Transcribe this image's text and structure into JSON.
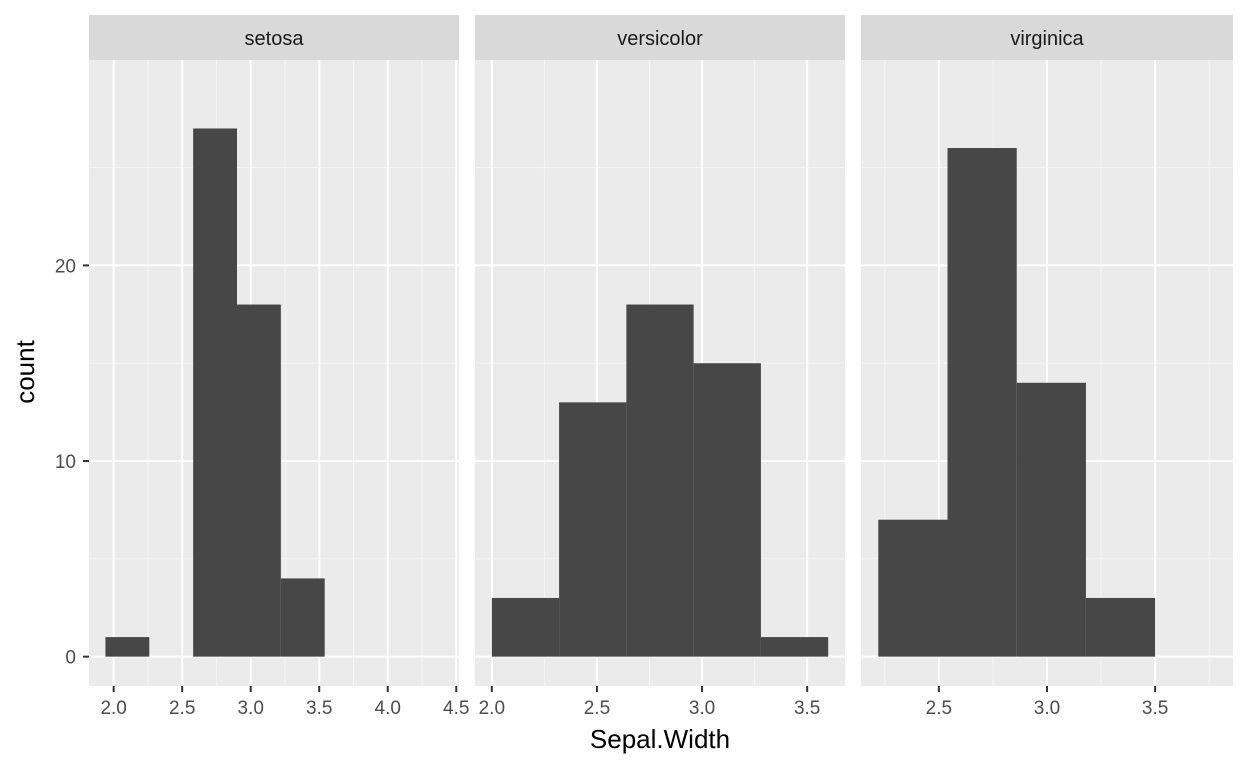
{
  "chart_data": {
    "type": "histogram",
    "xlabel": "Sepal.Width",
    "ylabel": "count",
    "ylim": [
      -1.5,
      30.5
    ],
    "y_ticks": [
      0,
      10,
      20
    ],
    "y_tick_labels": [
      "0",
      "10",
      "20"
    ],
    "grid": true,
    "panels": [
      {
        "name": "setosa",
        "xlim": [
          1.82,
          4.52
        ],
        "x_ticks": [
          2.0,
          2.5,
          3.0,
          3.5,
          4.0,
          4.5
        ],
        "x_tick_labels": [
          "2.0",
          "2.5",
          "3.0",
          "3.5",
          "4.0",
          "4.5"
        ],
        "bins": [
          {
            "x0": 1.94,
            "x1": 2.26,
            "count": 1
          },
          {
            "x0": 2.26,
            "x1": 2.58,
            "count": 0
          },
          {
            "x0": 2.58,
            "x1": 2.9,
            "count": 27
          },
          {
            "x0": 2.9,
            "x1": 3.22,
            "count": 18
          },
          {
            "x0": 3.22,
            "x1": 3.54,
            "count": 4
          }
        ]
      },
      {
        "name": "versicolor",
        "xlim": [
          1.92,
          3.68
        ],
        "x_ticks": [
          2.0,
          2.5,
          3.0,
          3.5
        ],
        "x_tick_labels": [
          "2.0",
          "2.5",
          "3.0",
          "3.5"
        ],
        "bins": [
          {
            "x0": 2.0,
            "x1": 2.32,
            "count": 3
          },
          {
            "x0": 2.32,
            "x1": 2.64,
            "count": 13
          },
          {
            "x0": 2.64,
            "x1": 2.96,
            "count": 18
          },
          {
            "x0": 2.96,
            "x1": 3.28,
            "count": 15
          },
          {
            "x0": 3.28,
            "x1": 3.6,
            "count": 1
          }
        ]
      },
      {
        "name": "virginica",
        "xlim": [
          2.14,
          3.86
        ],
        "x_ticks": [
          2.5,
          3.0,
          3.5
        ],
        "x_tick_labels": [
          "2.5",
          "3.0",
          "3.5"
        ],
        "bins": [
          {
            "x0": 2.22,
            "x1": 2.54,
            "count": 7
          },
          {
            "x0": 2.54,
            "x1": 2.86,
            "count": 26
          },
          {
            "x0": 2.86,
            "x1": 3.18,
            "count": 14
          },
          {
            "x0": 3.18,
            "x1": 3.5,
            "count": 3
          }
        ]
      }
    ]
  },
  "colors": {
    "panel_bg": "#ebebeb",
    "strip_bg": "#d9d9d9",
    "grid_major": "#ffffff",
    "grid_minor": "#f5f5f5",
    "bar_fill": "#474747",
    "tick": "#333333"
  }
}
